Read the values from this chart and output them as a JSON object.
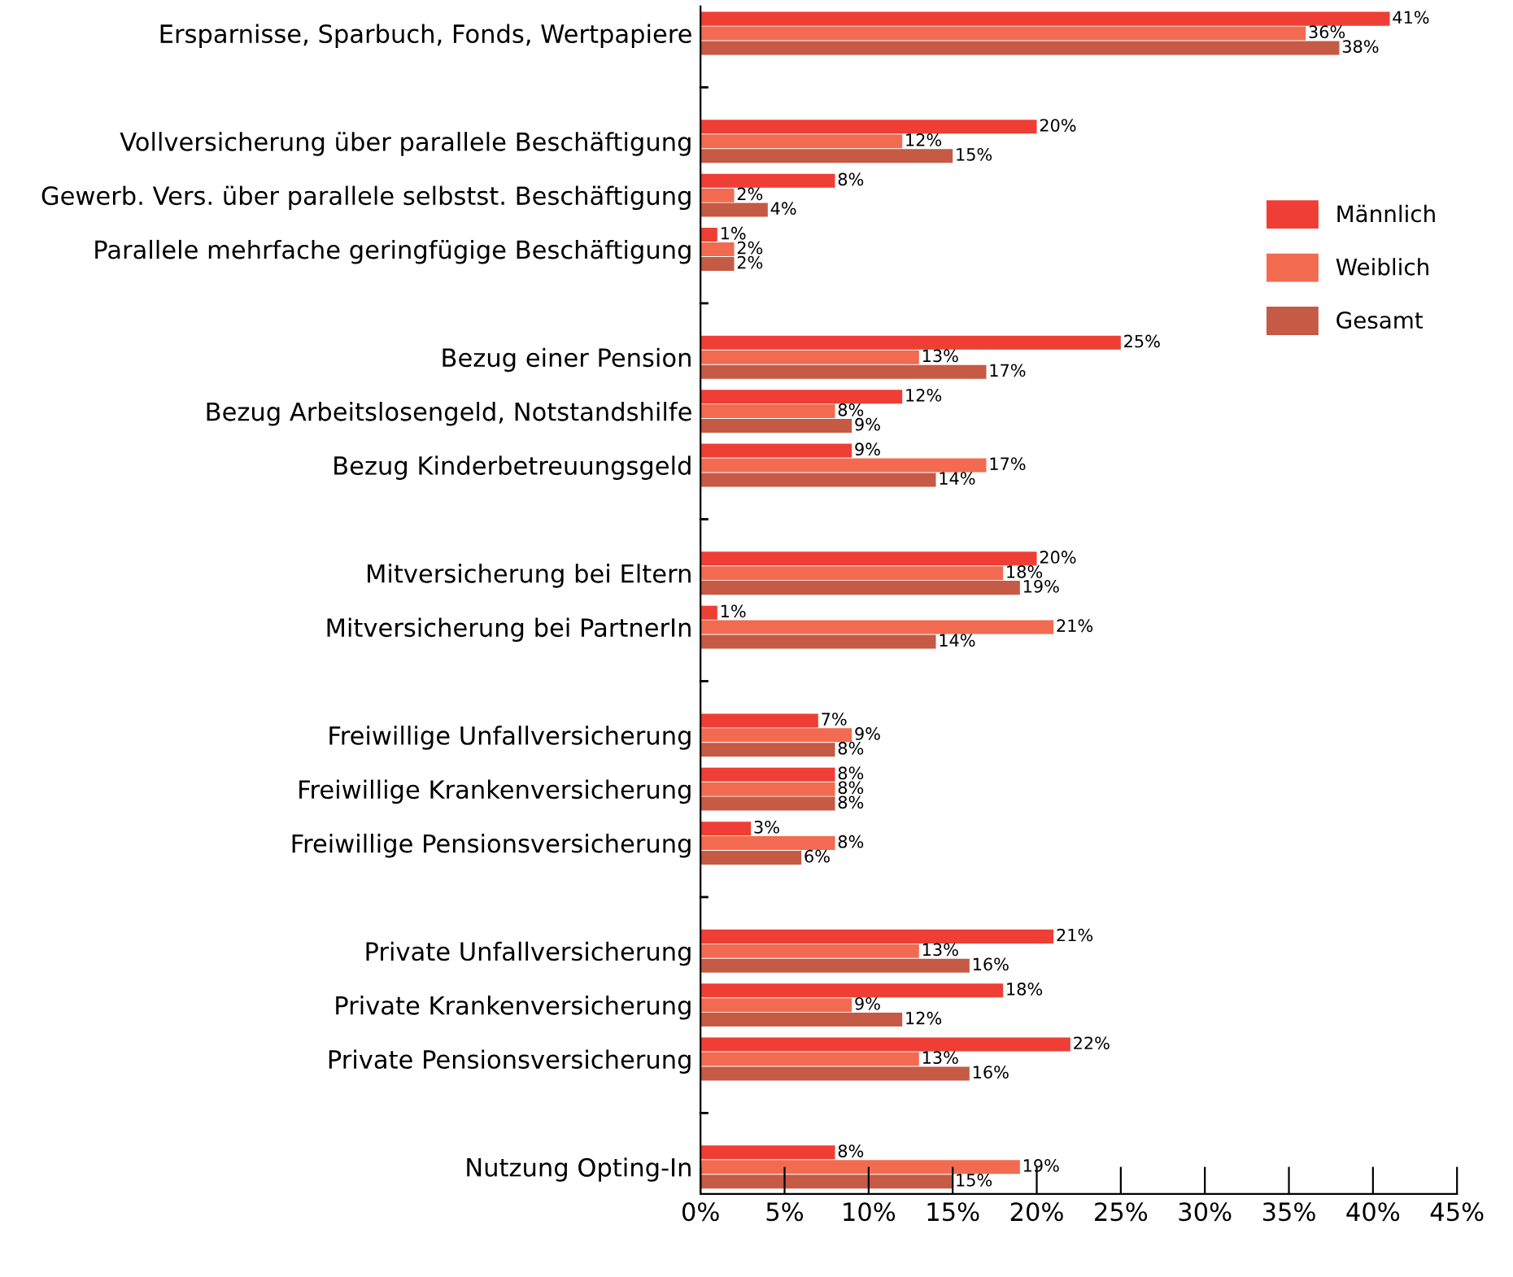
{
  "chart_data": {
    "type": "bar",
    "orientation": "horizontal",
    "categories": [
      "Ersparnisse, Sparbuch, Fonds, Wertpapiere",
      null,
      "Vollversicherung über parallele Beschäftigung",
      "Gewerb. Vers. über parallele selbstst. Beschäftigung",
      "Parallele mehrfache geringfügige Beschäftigung",
      null,
      "Bezug einer Pension",
      "Bezug Arbeitslosengeld, Notstandshilfe",
      "Bezug Kinderbetreuungsgeld",
      null,
      "Mitversicherung bei Eltern",
      "Mitversicherung bei PartnerIn",
      null,
      "Freiwillige Unfallversicherung",
      "Freiwillige Krankenversicherung",
      "Freiwillige Pensionsversicherung",
      null,
      "Private Unfallversicherung",
      "Private Krankenversicherung",
      "Private Pensionsversicherung",
      null,
      "Nutzung Opting-In"
    ],
    "series": [
      {
        "name": "Männlich",
        "color": "#ef3e36",
        "values": [
          41,
          null,
          20,
          8,
          1,
          null,
          25,
          12,
          9,
          null,
          20,
          1,
          null,
          7,
          8,
          3,
          null,
          21,
          18,
          22,
          null,
          8
        ],
        "value_labels": [
          "41%",
          null,
          "20%",
          "8%",
          "1%",
          null,
          "25%",
          "12%",
          "9%",
          null,
          "20%",
          "1%",
          null,
          "7%",
          "8%",
          "3%",
          null,
          "21%",
          "18%",
          "22%",
          null,
          "8%"
        ]
      },
      {
        "name": "Weiblich",
        "color": "#f26b50",
        "values": [
          36,
          null,
          12,
          2,
          2,
          null,
          13,
          8,
          17,
          null,
          18,
          21,
          null,
          9,
          8,
          8,
          null,
          13,
          9,
          13,
          null,
          19
        ],
        "value_labels": [
          "36%",
          null,
          "12%",
          "2%",
          "2%",
          null,
          "13%",
          "8%",
          "17%",
          null,
          "18%",
          "21%",
          null,
          "9%",
          "8%",
          "8%",
          null,
          "13%",
          "9%",
          "13%",
          null,
          "19%"
        ]
      },
      {
        "name": "Gesamt",
        "color": "#c55a45",
        "values": [
          38,
          null,
          15,
          4,
          2,
          null,
          17,
          9,
          14,
          null,
          19,
          14,
          null,
          8,
          8,
          6,
          null,
          16,
          12,
          16,
          null,
          15
        ],
        "value_labels": [
          "38%",
          null,
          "15%",
          "4%",
          "2%",
          null,
          "17%",
          "9%",
          "14%",
          null,
          "19%",
          "14%",
          null,
          "8%",
          "8%",
          "6%",
          null,
          "16%",
          "12%",
          "16%",
          null,
          "15%"
        ]
      }
    ],
    "xlim": [
      0,
      45
    ],
    "xticks": [
      {
        "value": 0,
        "label": "0%"
      },
      {
        "value": 5,
        "label": "5%"
      },
      {
        "value": 10,
        "label": "10%"
      },
      {
        "value": 15,
        "label": "15%"
      },
      {
        "value": 20,
        "label": "20%"
      },
      {
        "value": 25,
        "label": "25%"
      },
      {
        "value": 30,
        "label": "30%"
      },
      {
        "value": 35,
        "label": "35%"
      },
      {
        "value": 40,
        "label": "40%"
      },
      {
        "value": 45,
        "label": "45%"
      }
    ],
    "grid": false,
    "legend": "right"
  }
}
